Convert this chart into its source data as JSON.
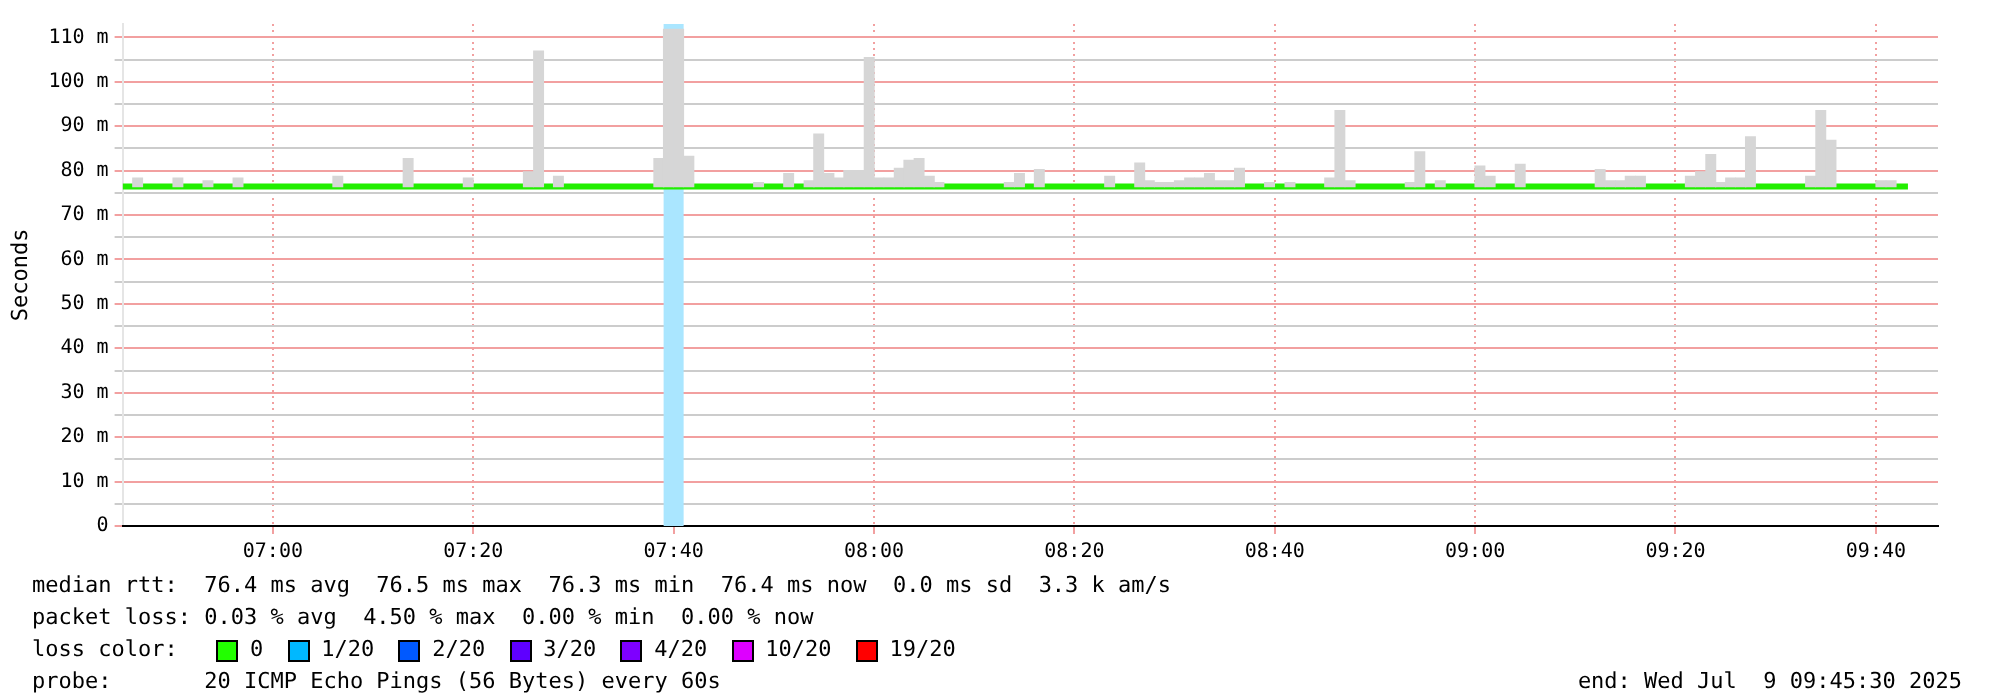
{
  "chart_data": {
    "type": "bar",
    "ylabel": "Seconds",
    "xlim": [
      6.75,
      9.77
    ],
    "ylim": [
      0,
      113
    ],
    "xticks": [
      {
        "value": 7,
        "label": "07:00"
      },
      {
        "value": 7.3333,
        "label": "07:20"
      },
      {
        "value": 7.6667,
        "label": "07:40"
      },
      {
        "value": 8,
        "label": "08:00"
      },
      {
        "value": 8.3333,
        "label": "08:20"
      },
      {
        "value": 8.6667,
        "label": "08:40"
      },
      {
        "value": 9,
        "label": "09:00"
      },
      {
        "value": 9.3333,
        "label": "09:20"
      },
      {
        "value": 9.6667,
        "label": "09:40"
      }
    ],
    "yticks": [
      0,
      {
        "value": 5,
        "label": null
      },
      {
        "value": 10,
        "label": "10 m"
      },
      {
        "value": 15,
        "label": null
      },
      {
        "value": 20,
        "label": "20 m"
      },
      {
        "value": 25,
        "label": null
      },
      {
        "value": 30,
        "label": "30 m"
      },
      {
        "value": 35,
        "label": null
      },
      {
        "value": 40,
        "label": "40 m"
      },
      {
        "value": 45,
        "label": null
      },
      {
        "value": 50,
        "label": "50 m"
      },
      {
        "value": 55,
        "label": null
      },
      {
        "value": 60,
        "label": "60 m"
      },
      {
        "value": 65,
        "label": null
      },
      {
        "value": 70,
        "label": "70 m"
      },
      {
        "value": 75,
        "label": null
      },
      {
        "value": 80,
        "label": "80 m"
      },
      {
        "value": 85,
        "label": null
      },
      {
        "value": 90,
        "label": "90 m"
      },
      {
        "value": 95,
        "label": null
      },
      {
        "value": 100,
        "label": "100 m"
      },
      {
        "value": 105,
        "label": null
      },
      {
        "value": 110,
        "label": "110 m"
      }
    ],
    "grid": true,
    "bands": [
      {
        "axis": "x",
        "from": 7.65,
        "to": 7.6833,
        "color": "#aae6ff"
      }
    ],
    "series": [
      {
        "color": "#d6d6d6",
        "x": [
          6.775,
          6.842,
          6.892,
          6.942,
          7.108,
          7.225,
          7.325,
          7.425,
          7.442,
          7.475,
          7.642,
          7.658,
          7.675,
          7.692,
          7.808,
          7.858,
          7.892,
          7.908,
          7.925,
          7.942,
          7.958,
          7.975,
          7.992,
          8.008,
          8.025,
          8.042,
          8.058,
          8.075,
          8.092,
          8.108,
          8.225,
          8.242,
          8.275,
          8.392,
          8.442,
          8.458,
          8.475,
          8.492,
          8.508,
          8.525,
          8.542,
          8.558,
          8.575,
          8.592,
          8.608,
          8.658,
          8.692,
          8.758,
          8.775,
          8.792,
          8.892,
          8.908,
          8.942,
          9.008,
          9.025,
          9.075,
          9.208,
          9.225,
          9.242,
          9.258,
          9.275,
          9.358,
          9.375,
          9.392,
          9.408,
          9.425,
          9.442,
          9.458,
          9.558,
          9.575,
          9.592,
          9.675,
          9.692
        ],
        "values": [
          1.9,
          1.9,
          1.3,
          1.9,
          2.3,
          6.3,
          1.9,
          3.3,
          30.5,
          2.3,
          6.3,
          35.4,
          35.4,
          6.8,
          0.9,
          2.9,
          1.3,
          11.8,
          2.9,
          1.9,
          3.6,
          3.6,
          29,
          1.9,
          1.9,
          4.1,
          5.9,
          6.3,
          2.3,
          0.9,
          0.9,
          2.9,
          3.8,
          2.3,
          5.3,
          1.3,
          0.9,
          0.9,
          1.3,
          1.9,
          1.9,
          2.9,
          1.3,
          1.3,
          4.1,
          0.9,
          0.9,
          1.9,
          17.1,
          1.3,
          0.9,
          7.8,
          1.3,
          4.6,
          2.3,
          5,
          3.8,
          1.3,
          1.3,
          2.3,
          2.3,
          2.3,
          3.3,
          7.2,
          0.9,
          1.9,
          1.9,
          11.2,
          2.3,
          17.1,
          10.4,
          1.3,
          1.3
        ],
        "base": [
          76.4,
          76.4,
          76.4,
          76.4,
          76.4,
          76.4,
          76.4,
          76.4,
          76.4,
          76.4,
          76.4,
          76.4,
          76.4,
          76.4,
          76.4,
          76.4,
          76.4,
          76.4,
          76.4,
          76.4,
          76.4,
          76.4,
          76.4,
          76.4,
          76.4,
          76.4,
          76.4,
          76.4,
          76.4,
          76.4,
          76.4,
          76.4,
          76.4,
          76.4,
          76.4,
          76.4,
          76.4,
          76.4,
          76.4,
          76.4,
          76.4,
          76.4,
          76.4,
          76.4,
          76.4,
          76.4,
          76.4,
          76.4,
          76.4,
          76.4,
          76.4,
          76.4,
          76.4,
          76.4,
          76.4,
          76.4,
          76.4,
          76.4,
          76.4,
          76.4,
          76.4,
          76.4,
          76.4,
          76.4,
          76.4,
          76.4,
          76.4,
          76.4,
          76.4,
          76.4,
          76.4,
          76.4,
          76.4
        ]
      },
      {
        "type": "line",
        "color": "#22ee00",
        "x": [
          6.75,
          9.72
        ],
        "values": [
          76.4,
          76.4
        ]
      }
    ],
    "annotations": [
      "median rtt:  76.4 ms avg  76.5 ms max  76.3 ms min  76.4 ms now  0.0 ms sd  3.3 k am/s",
      "packet loss: 0.03 % avg  4.50 % max  0.00 % min  0.00 % now",
      "loss color:",
      "0",
      "1/20",
      "2/20",
      "3/20",
      "4/20",
      "10/20",
      "19/20",
      "probe:       20 ICMP Echo Pings (56 Bytes) every 60s",
      "end: Wed Jul  9 09:45:30 2025"
    ]
  }
}
